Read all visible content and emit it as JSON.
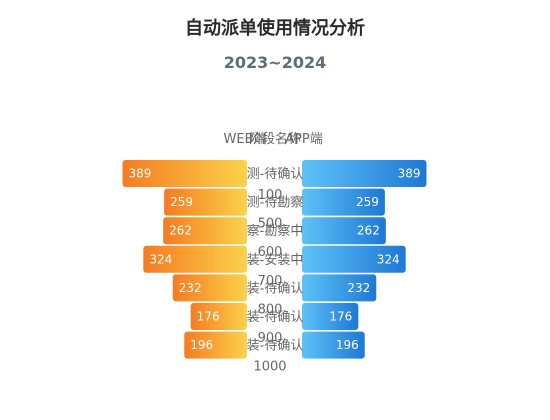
{
  "chart_data": {
    "type": "bar",
    "title": "自动派单使用情况分析",
    "subtitle": "2023~2024",
    "categories": [
      "测-待确认",
      "测-待勘察",
      "察-勘察中",
      "装-安装中",
      "装-待确认",
      "装-待确认",
      "装-待确认"
    ],
    "series": [
      {
        "name": "WEB端",
        "values": [
          389,
          259,
          262,
          324,
          232,
          176,
          196
        ]
      },
      {
        "name": "APP端",
        "values": [
          389,
          259,
          262,
          324,
          232,
          176,
          196
        ]
      }
    ],
    "axis_label": "阶段名称",
    "ticks": [
      "100",
      "500",
      "600",
      "700",
      "800",
      "900",
      "1000"
    ],
    "xlim": [
      0,
      500
    ],
    "legend_position": "top-center",
    "colors": {
      "web_start": "#f57b22",
      "web_end": "#fbd24a",
      "app_start": "#5ec2f7",
      "app_end": "#1e78d5"
    }
  }
}
